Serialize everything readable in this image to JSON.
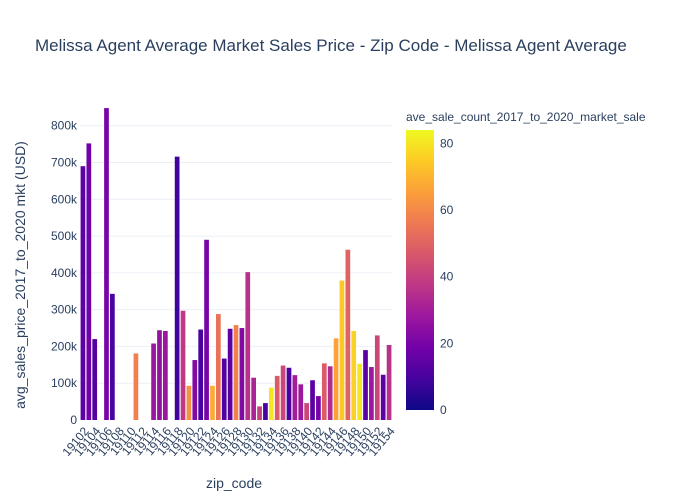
{
  "chart_data": {
    "type": "bar",
    "title": "Melissa Agent Average Market Sales Price - Zip Code - Melissa Agent Average",
    "xlabel": "zip_code",
    "ylabel": "avg_sales_price_2017_to_2020 mkt (USD)",
    "ylim": [
      0,
      870000
    ],
    "yticks": [
      0,
      100000,
      200000,
      300000,
      400000,
      500000,
      600000,
      700000,
      800000
    ],
    "ytick_labels": [
      "0",
      "100k",
      "200k",
      "300k",
      "400k",
      "500k",
      "600k",
      "700k",
      "800k"
    ],
    "xtick_labels": [
      "19102",
      "19104",
      "19106",
      "19108",
      "19110",
      "19112",
      "19114",
      "19116",
      "19118",
      "19120",
      "19122",
      "19124",
      "19126",
      "19128",
      "19130",
      "19132",
      "19134",
      "19136",
      "19138",
      "19140",
      "19142",
      "19144",
      "19146",
      "19148",
      "19150",
      "19152",
      "19154"
    ],
    "x_start": 19102,
    "x_end": 19154,
    "grid": true,
    "colorbar": {
      "title": "ave_sale_count_2017_to_2020_market_sale",
      "range": [
        0,
        84
      ],
      "ticks": [
        0,
        20,
        40,
        60,
        80
      ],
      "colorscale": [
        "#0d0887",
        "#46039f",
        "#7201a8",
        "#9c179e",
        "#bd3786",
        "#d8576b",
        "#ed7953",
        "#fb9f3a",
        "#fdca26",
        "#f0f921"
      ]
    },
    "bars": [
      {
        "zip": 19102,
        "value": 690000,
        "count": 14
      },
      {
        "zip": 19103,
        "value": 752000,
        "count": 18
      },
      {
        "zip": 19104,
        "value": 220000,
        "count": 12
      },
      {
        "zip": 19106,
        "value": 848000,
        "count": 20
      },
      {
        "zip": 19107,
        "value": 343000,
        "count": 10
      },
      {
        "zip": 19111,
        "value": 181000,
        "count": 58
      },
      {
        "zip": 19114,
        "value": 208000,
        "count": 28
      },
      {
        "zip": 19115,
        "value": 244000,
        "count": 26
      },
      {
        "zip": 19116,
        "value": 242000,
        "count": 28
      },
      {
        "zip": 19118,
        "value": 716000,
        "count": 8
      },
      {
        "zip": 19119,
        "value": 297000,
        "count": 38
      },
      {
        "zip": 19120,
        "value": 93000,
        "count": 62
      },
      {
        "zip": 19121,
        "value": 163000,
        "count": 22
      },
      {
        "zip": 19122,
        "value": 246000,
        "count": 10
      },
      {
        "zip": 19123,
        "value": 490000,
        "count": 20
      },
      {
        "zip": 19124,
        "value": 93000,
        "count": 68
      },
      {
        "zip": 19125,
        "value": 288000,
        "count": 54
      },
      {
        "zip": 19126,
        "value": 167000,
        "count": 12
      },
      {
        "zip": 19127,
        "value": 248000,
        "count": 14
      },
      {
        "zip": 19128,
        "value": 258000,
        "count": 58
      },
      {
        "zip": 19129,
        "value": 250000,
        "count": 22
      },
      {
        "zip": 19130,
        "value": 402000,
        "count": 36
      },
      {
        "zip": 19131,
        "value": 115000,
        "count": 32
      },
      {
        "zip": 19132,
        "value": 37000,
        "count": 40
      },
      {
        "zip": 19133,
        "value": 46000,
        "count": 10
      },
      {
        "zip": 19134,
        "value": 88000,
        "count": 80
      },
      {
        "zip": 19135,
        "value": 120000,
        "count": 48
      },
      {
        "zip": 19136,
        "value": 148000,
        "count": 42
      },
      {
        "zip": 19137,
        "value": 142000,
        "count": 10
      },
      {
        "zip": 19138,
        "value": 122000,
        "count": 30
      },
      {
        "zip": 19139,
        "value": 97000,
        "count": 28
      },
      {
        "zip": 19140,
        "value": 46000,
        "count": 42
      },
      {
        "zip": 19141,
        "value": 108000,
        "count": 14
      },
      {
        "zip": 19142,
        "value": 65000,
        "count": 20
      },
      {
        "zip": 19143,
        "value": 154000,
        "count": 48
      },
      {
        "zip": 19144,
        "value": 146000,
        "count": 34
      },
      {
        "zip": 19145,
        "value": 222000,
        "count": 66
      },
      {
        "zip": 19146,
        "value": 379000,
        "count": 74
      },
      {
        "zip": 19147,
        "value": 463000,
        "count": 50
      },
      {
        "zip": 19148,
        "value": 242000,
        "count": 76
      },
      {
        "zip": 19149,
        "value": 153000,
        "count": 80
      },
      {
        "zip": 19150,
        "value": 190000,
        "count": 14
      },
      {
        "zip": 19151,
        "value": 144000,
        "count": 28
      },
      {
        "zip": 19152,
        "value": 230000,
        "count": 42
      },
      {
        "zip": 19153,
        "value": 123000,
        "count": 14
      },
      {
        "zip": 19154,
        "value": 204000,
        "count": 36
      }
    ]
  }
}
